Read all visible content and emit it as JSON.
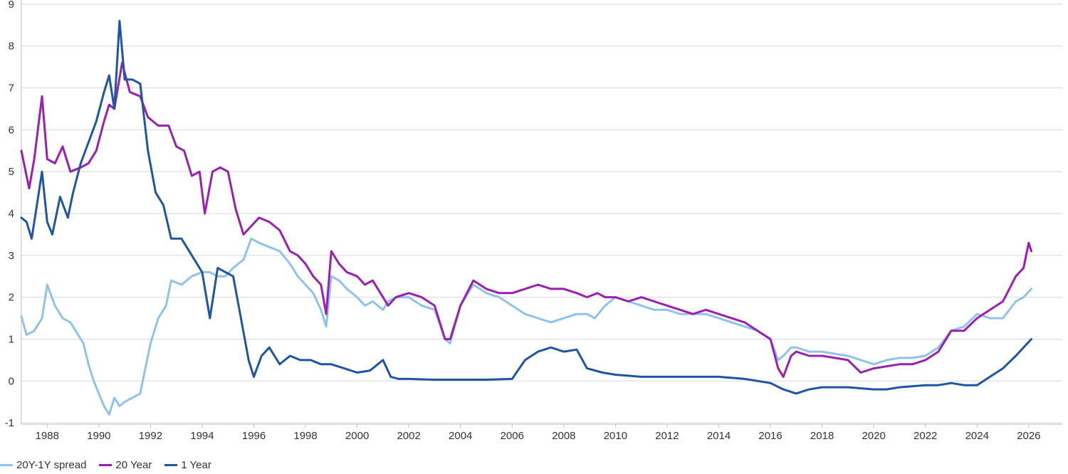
{
  "chart_data": {
    "type": "line",
    "title": "",
    "xlabel": "",
    "ylabel": "",
    "xlim": [
      1987.0,
      2027.3
    ],
    "ylim": [
      -1.1,
      9.1
    ],
    "grid": true,
    "legend_position": "bottom-left",
    "y_ticks": [
      -1,
      0,
      1,
      2,
      3,
      4,
      5,
      6,
      7,
      8,
      9
    ],
    "x_ticks": [
      "1988",
      "1990",
      "1992",
      "1994",
      "1996",
      "1998",
      "2000",
      "2002",
      "2004",
      "2006",
      "2008",
      "2010",
      "2012",
      "2014",
      "2016",
      "2018",
      "2020",
      "2022",
      "2024",
      "2026"
    ],
    "series": [
      {
        "name": "20Y-1Y spread",
        "color": "#8fc3ee",
        "x": [
          1987.0,
          1987.2,
          1987.5,
          1987.8,
          1988.0,
          1988.3,
          1988.6,
          1988.9,
          1989.1,
          1989.4,
          1989.6,
          1989.8,
          1990.0,
          1990.2,
          1990.4,
          1990.6,
          1990.8,
          1991.0,
          1991.3,
          1991.6,
          1991.8,
          1992.0,
          1992.3,
          1992.6,
          1992.8,
          1993.2,
          1993.6,
          1994.0,
          1994.3,
          1994.6,
          1994.9,
          1995.2,
          1995.6,
          1995.9,
          1996.2,
          1996.6,
          1997.0,
          1997.4,
          1997.7,
          1998.0,
          1998.3,
          1998.6,
          1998.8,
          1999.0,
          1999.3,
          1999.6,
          2000.0,
          2000.3,
          2000.6,
          2001.0,
          2001.2,
          2001.5,
          2002.0,
          2002.5,
          2003.0,
          2003.4,
          2003.6,
          2004.0,
          2004.5,
          2005.0,
          2005.5,
          2006.0,
          2006.5,
          2007.0,
          2007.5,
          2008.0,
          2008.5,
          2008.9,
          2009.2,
          2009.6,
          2010.0,
          2010.5,
          2011.0,
          2011.5,
          2012.0,
          2012.5,
          2013.0,
          2013.5,
          2014.0,
          2014.5,
          2015.0,
          2015.5,
          2016.0,
          2016.3,
          2016.5,
          2016.8,
          2017.0,
          2017.5,
          2018.0,
          2018.5,
          2019.0,
          2019.5,
          2020.0,
          2020.5,
          2021.0,
          2021.5,
          2022.0,
          2022.5,
          2023.0,
          2023.5,
          2024.0,
          2024.5,
          2025.0,
          2025.5,
          2025.8,
          2026.1
        ],
        "y": [
          1.55,
          1.1,
          1.2,
          1.5,
          2.3,
          1.8,
          1.5,
          1.4,
          1.2,
          0.9,
          0.4,
          0.0,
          -0.3,
          -0.6,
          -0.8,
          -0.4,
          -0.6,
          -0.5,
          -0.4,
          -0.3,
          0.3,
          0.9,
          1.5,
          1.8,
          2.4,
          2.3,
          2.5,
          2.6,
          2.6,
          2.5,
          2.5,
          2.7,
          2.9,
          3.4,
          3.3,
          3.2,
          3.1,
          2.8,
          2.5,
          2.3,
          2.1,
          1.7,
          1.3,
          2.5,
          2.4,
          2.2,
          2.0,
          1.8,
          1.9,
          1.7,
          1.9,
          2.0,
          2.0,
          1.8,
          1.7,
          1.0,
          0.9,
          1.8,
          2.3,
          2.1,
          2.0,
          1.8,
          1.6,
          1.5,
          1.4,
          1.5,
          1.6,
          1.6,
          1.5,
          1.8,
          2.0,
          1.9,
          1.8,
          1.7,
          1.7,
          1.6,
          1.6,
          1.6,
          1.5,
          1.4,
          1.3,
          1.2,
          1.0,
          0.5,
          0.6,
          0.8,
          0.8,
          0.7,
          0.7,
          0.65,
          0.6,
          0.5,
          0.4,
          0.5,
          0.55,
          0.55,
          0.6,
          0.8,
          1.2,
          1.3,
          1.6,
          1.5,
          1.5,
          1.9,
          2.0,
          2.2
        ]
      },
      {
        "name": "20 Year",
        "color": "#9b1fb0",
        "x": [
          1987.0,
          1987.3,
          1987.5,
          1987.8,
          1988.0,
          1988.3,
          1988.6,
          1988.9,
          1989.3,
          1989.6,
          1989.9,
          1990.2,
          1990.4,
          1990.6,
          1990.9,
          1991.2,
          1991.6,
          1991.9,
          1992.3,
          1992.7,
          1993.0,
          1993.3,
          1993.6,
          1993.9,
          1994.1,
          1994.4,
          1994.7,
          1995.0,
          1995.3,
          1995.6,
          1995.9,
          1996.2,
          1996.6,
          1997.0,
          1997.4,
          1997.7,
          1998.0,
          1998.3,
          1998.6,
          1998.8,
          1999.0,
          1999.3,
          1999.6,
          2000.0,
          2000.3,
          2000.6,
          2001.0,
          2001.2,
          2001.5,
          2002.0,
          2002.5,
          2003.0,
          2003.4,
          2003.6,
          2004.0,
          2004.5,
          2005.0,
          2005.5,
          2006.0,
          2006.5,
          2007.0,
          2007.5,
          2008.0,
          2008.5,
          2008.9,
          2009.3,
          2009.6,
          2010.0,
          2010.5,
          2011.0,
          2011.5,
          2012.0,
          2012.5,
          2013.0,
          2013.5,
          2014.0,
          2014.5,
          2015.0,
          2015.5,
          2016.0,
          2016.3,
          2016.5,
          2016.8,
          2017.0,
          2017.5,
          2018.0,
          2018.5,
          2019.0,
          2019.5,
          2020.0,
          2020.5,
          2021.0,
          2021.5,
          2022.0,
          2022.5,
          2023.0,
          2023.5,
          2024.0,
          2024.5,
          2025.0,
          2025.5,
          2025.8,
          2026.0,
          2026.1
        ],
        "y": [
          5.5,
          4.6,
          5.3,
          6.8,
          5.3,
          5.2,
          5.6,
          5.0,
          5.1,
          5.2,
          5.5,
          6.2,
          6.6,
          6.5,
          7.6,
          6.9,
          6.8,
          6.3,
          6.1,
          6.1,
          5.6,
          5.5,
          4.9,
          5.0,
          4.0,
          5.0,
          5.1,
          5.0,
          4.1,
          3.5,
          3.7,
          3.9,
          3.8,
          3.6,
          3.1,
          3.0,
          2.8,
          2.5,
          2.3,
          1.6,
          3.1,
          2.8,
          2.6,
          2.5,
          2.3,
          2.4,
          2.0,
          1.8,
          2.0,
          2.1,
          2.0,
          1.8,
          1.0,
          1.0,
          1.8,
          2.4,
          2.2,
          2.1,
          2.1,
          2.2,
          2.3,
          2.2,
          2.2,
          2.1,
          2.0,
          2.1,
          2.0,
          2.0,
          1.9,
          2.0,
          1.9,
          1.8,
          1.7,
          1.6,
          1.7,
          1.6,
          1.5,
          1.4,
          1.2,
          1.0,
          0.3,
          0.1,
          0.6,
          0.7,
          0.6,
          0.6,
          0.55,
          0.5,
          0.2,
          0.3,
          0.35,
          0.4,
          0.4,
          0.5,
          0.7,
          1.2,
          1.2,
          1.5,
          1.7,
          1.9,
          2.5,
          2.7,
          3.3,
          3.1
        ]
      },
      {
        "name": "1 Year",
        "color": "#1f56a3",
        "x": [
          1987.0,
          1987.2,
          1987.4,
          1987.6,
          1987.8,
          1988.0,
          1988.2,
          1988.5,
          1988.8,
          1989.0,
          1989.3,
          1989.6,
          1989.9,
          1990.2,
          1990.4,
          1990.6,
          1990.8,
          1991.0,
          1991.3,
          1991.6,
          1991.9,
          1992.2,
          1992.5,
          1992.8,
          1993.2,
          1993.6,
          1994.0,
          1994.3,
          1994.6,
          1994.9,
          1995.2,
          1995.5,
          1995.8,
          1996.0,
          1996.3,
          1996.6,
          1997.0,
          1997.4,
          1997.8,
          1998.2,
          1998.6,
          1999.0,
          1999.5,
          2000.0,
          2000.5,
          2001.0,
          2001.3,
          2001.6,
          2002.0,
          2003.0,
          2004.0,
          2005.0,
          2006.0,
          2006.5,
          2007.0,
          2007.5,
          2008.0,
          2008.5,
          2008.9,
          2009.5,
          2010.0,
          2011.0,
          2012.0,
          2013.0,
          2014.0,
          2015.0,
          2016.0,
          2016.5,
          2017.0,
          2017.5,
          2018.0,
          2019.0,
          2020.0,
          2020.5,
          2021.0,
          2022.0,
          2022.5,
          2023.0,
          2023.5,
          2024.0,
          2024.5,
          2025.0,
          2025.5,
          2026.1
        ],
        "y": [
          3.9,
          3.8,
          3.4,
          4.2,
          5.0,
          3.8,
          3.5,
          4.4,
          3.9,
          4.5,
          5.2,
          5.7,
          6.2,
          6.9,
          7.3,
          6.5,
          8.6,
          7.2,
          7.2,
          7.1,
          5.5,
          4.5,
          4.2,
          3.4,
          3.4,
          3.0,
          2.6,
          1.5,
          2.7,
          2.6,
          2.5,
          1.5,
          0.5,
          0.1,
          0.6,
          0.8,
          0.4,
          0.6,
          0.5,
          0.5,
          0.4,
          0.4,
          0.3,
          0.2,
          0.25,
          0.5,
          0.1,
          0.05,
          0.05,
          0.03,
          0.03,
          0.03,
          0.05,
          0.5,
          0.7,
          0.8,
          0.7,
          0.75,
          0.3,
          0.2,
          0.15,
          0.1,
          0.1,
          0.1,
          0.1,
          0.05,
          -0.05,
          -0.2,
          -0.3,
          -0.2,
          -0.15,
          -0.15,
          -0.2,
          -0.2,
          -0.15,
          -0.1,
          -0.1,
          -0.05,
          -0.1,
          -0.1,
          0.1,
          0.3,
          0.6,
          1.0
        ]
      }
    ]
  },
  "legend": {
    "items": [
      {
        "label": "20Y-1Y spread",
        "color": "#8fc3ee"
      },
      {
        "label": "20 Year",
        "color": "#9b1fb0"
      },
      {
        "label": "1 Year",
        "color": "#1f56a3"
      }
    ]
  }
}
